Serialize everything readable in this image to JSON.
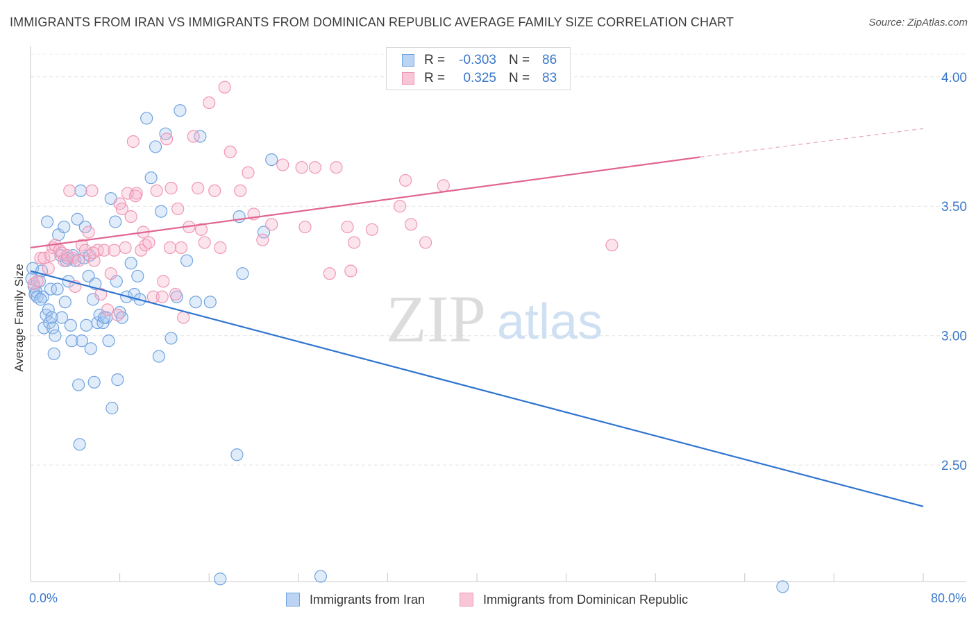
{
  "title": "IMMIGRANTS FROM IRAN VS IMMIGRANTS FROM DOMINICAN REPUBLIC AVERAGE FAMILY SIZE CORRELATION CHART",
  "source": "Source: ZipAtlas.com",
  "watermark": {
    "zip": "ZIP",
    "atlas": "atlas"
  },
  "legend": {
    "iran": {
      "r_label": "R =",
      "r_value": "-0.303",
      "n_label": "N =",
      "n_value": "86"
    },
    "dominican": {
      "r_label": "R =",
      "r_value": "0.325",
      "n_label": "N =",
      "n_value": "83"
    }
  },
  "chart_data": {
    "type": "scatter",
    "ylabel": "Average Family Size",
    "xlim": [
      0,
      80
    ],
    "ylim": [
      2.05,
      4.12
    ],
    "x_tick_labels": [
      "0.0%",
      "80.0%"
    ],
    "y_ticks": [
      2.5,
      3.0,
      3.5,
      4.0
    ],
    "y_tick_labels": [
      "2.50",
      "3.00",
      "3.50",
      "4.00"
    ],
    "grid": true,
    "legend_position": "top-center",
    "series": [
      {
        "name": "Immigrants from Iran",
        "color": "#6fa3e0",
        "trend": {
          "x": [
            0,
            80
          ],
          "y": [
            3.25,
            2.34
          ],
          "color": "#2f74d0"
        },
        "points": [
          [
            0.2,
            3.26
          ],
          [
            0.3,
            3.19
          ],
          [
            0.4,
            3.16
          ],
          [
            0.5,
            3.17
          ],
          [
            0.6,
            3.15
          ],
          [
            0.8,
            3.21
          ],
          [
            1.0,
            3.25
          ],
          [
            1.1,
            3.15
          ],
          [
            1.2,
            3.03
          ],
          [
            1.4,
            3.08
          ],
          [
            1.5,
            3.44
          ],
          [
            1.6,
            3.1
          ],
          [
            1.7,
            3.05
          ],
          [
            1.8,
            3.18
          ],
          [
            1.9,
            3.07
          ],
          [
            2.0,
            3.03
          ],
          [
            2.1,
            2.93
          ],
          [
            2.2,
            3.0
          ],
          [
            2.4,
            3.18
          ],
          [
            2.5,
            3.39
          ],
          [
            2.7,
            3.31
          ],
          [
            2.8,
            3.07
          ],
          [
            3.0,
            3.42
          ],
          [
            3.1,
            3.13
          ],
          [
            3.2,
            3.29
          ],
          [
            3.4,
            3.21
          ],
          [
            3.6,
            3.04
          ],
          [
            3.7,
            2.98
          ],
          [
            3.8,
            3.31
          ],
          [
            4.0,
            3.29
          ],
          [
            4.2,
            3.45
          ],
          [
            4.3,
            2.81
          ],
          [
            4.4,
            2.58
          ],
          [
            4.5,
            3.56
          ],
          [
            4.6,
            2.98
          ],
          [
            4.8,
            3.3
          ],
          [
            4.9,
            3.42
          ],
          [
            5.0,
            3.04
          ],
          [
            5.2,
            3.23
          ],
          [
            5.3,
            3.31
          ],
          [
            5.4,
            2.95
          ],
          [
            5.6,
            3.14
          ],
          [
            5.7,
            2.82
          ],
          [
            5.8,
            3.2
          ],
          [
            6.0,
            3.05
          ],
          [
            6.2,
            3.08
          ],
          [
            6.5,
            3.05
          ],
          [
            6.8,
            3.07
          ],
          [
            7.0,
            2.98
          ],
          [
            7.2,
            3.53
          ],
          [
            7.3,
            2.72
          ],
          [
            7.6,
            3.44
          ],
          [
            7.7,
            3.21
          ],
          [
            7.8,
            2.83
          ],
          [
            8.0,
            3.09
          ],
          [
            8.2,
            3.07
          ],
          [
            8.6,
            3.15
          ],
          [
            9.0,
            3.28
          ],
          [
            9.3,
            3.16
          ],
          [
            9.6,
            3.23
          ],
          [
            9.8,
            3.14
          ],
          [
            10.4,
            3.84
          ],
          [
            10.8,
            3.61
          ],
          [
            11.2,
            3.73
          ],
          [
            11.5,
            2.92
          ],
          [
            11.7,
            3.48
          ],
          [
            12.1,
            3.78
          ],
          [
            12.6,
            2.99
          ],
          [
            13.1,
            3.15
          ],
          [
            13.4,
            3.87
          ],
          [
            14.0,
            3.29
          ],
          [
            14.8,
            3.13
          ],
          [
            15.2,
            3.77
          ],
          [
            16.1,
            3.13
          ],
          [
            17.0,
            2.06
          ],
          [
            18.5,
            2.54
          ],
          [
            18.7,
            3.46
          ],
          [
            19.0,
            3.24
          ],
          [
            20.9,
            3.4
          ],
          [
            21.6,
            3.68
          ],
          [
            26.0,
            2.07
          ],
          [
            67.4,
            2.03
          ],
          [
            0.1,
            3.22
          ],
          [
            0.9,
            3.14
          ],
          [
            3.3,
            3.3
          ],
          [
            6.6,
            3.07
          ]
        ]
      },
      {
        "name": "Immigrants from Dominican Republic",
        "color": "#ef96b4",
        "trend": {
          "x": [
            0,
            60
          ],
          "y": [
            3.34,
            3.69
          ],
          "color": "#e06593",
          "dashed_extension": {
            "x": [
              60,
              80
            ],
            "y": [
              3.69,
              3.8
            ]
          }
        },
        "points": [
          [
            0.3,
            3.2
          ],
          [
            0.6,
            3.21
          ],
          [
            0.9,
            3.3
          ],
          [
            1.2,
            3.3
          ],
          [
            1.6,
            3.26
          ],
          [
            1.8,
            3.31
          ],
          [
            2.0,
            3.34
          ],
          [
            2.2,
            3.35
          ],
          [
            2.6,
            3.33
          ],
          [
            2.8,
            3.32
          ],
          [
            3.0,
            3.29
          ],
          [
            3.3,
            3.31
          ],
          [
            3.5,
            3.56
          ],
          [
            3.8,
            3.3
          ],
          [
            4.0,
            3.19
          ],
          [
            4.3,
            3.29
          ],
          [
            4.6,
            3.35
          ],
          [
            4.9,
            3.33
          ],
          [
            5.2,
            3.4
          ],
          [
            5.5,
            3.56
          ],
          [
            5.7,
            3.29
          ],
          [
            6.0,
            3.33
          ],
          [
            6.3,
            3.16
          ],
          [
            6.6,
            3.33
          ],
          [
            6.9,
            3.1
          ],
          [
            7.2,
            3.24
          ],
          [
            7.5,
            3.33
          ],
          [
            7.8,
            3.08
          ],
          [
            8.0,
            3.51
          ],
          [
            8.2,
            3.49
          ],
          [
            8.5,
            3.34
          ],
          [
            8.7,
            3.55
          ],
          [
            9.0,
            3.46
          ],
          [
            9.2,
            3.75
          ],
          [
            9.5,
            3.55
          ],
          [
            9.9,
            3.33
          ],
          [
            10.1,
            3.4
          ],
          [
            10.3,
            3.35
          ],
          [
            10.6,
            3.36
          ],
          [
            11.0,
            3.15
          ],
          [
            11.3,
            3.56
          ],
          [
            11.8,
            3.15
          ],
          [
            12.2,
            3.76
          ],
          [
            12.6,
            3.57
          ],
          [
            13.0,
            3.16
          ],
          [
            13.2,
            3.49
          ],
          [
            13.5,
            3.34
          ],
          [
            13.7,
            3.07
          ],
          [
            14.2,
            3.42
          ],
          [
            14.6,
            3.77
          ],
          [
            15.0,
            3.57
          ],
          [
            15.3,
            3.41
          ],
          [
            16.0,
            3.9
          ],
          [
            16.5,
            3.56
          ],
          [
            17.0,
            3.34
          ],
          [
            17.4,
            3.96
          ],
          [
            17.9,
            3.71
          ],
          [
            18.8,
            3.56
          ],
          [
            19.5,
            3.63
          ],
          [
            20.0,
            3.47
          ],
          [
            20.8,
            3.37
          ],
          [
            21.6,
            3.43
          ],
          [
            22.6,
            3.66
          ],
          [
            24.3,
            3.65
          ],
          [
            24.6,
            3.42
          ],
          [
            25.5,
            3.65
          ],
          [
            26.8,
            3.24
          ],
          [
            27.4,
            3.65
          ],
          [
            28.4,
            3.42
          ],
          [
            28.7,
            3.25
          ],
          [
            29.0,
            3.36
          ],
          [
            30.6,
            3.41
          ],
          [
            33.1,
            3.5
          ],
          [
            33.6,
            3.6
          ],
          [
            34.1,
            3.43
          ],
          [
            35.4,
            3.36
          ],
          [
            37.0,
            3.58
          ],
          [
            52.1,
            3.35
          ],
          [
            11.9,
            3.21
          ],
          [
            15.6,
            3.36
          ],
          [
            5.6,
            3.32
          ],
          [
            9.4,
            3.54
          ],
          [
            12.5,
            3.34
          ]
        ]
      }
    ]
  }
}
